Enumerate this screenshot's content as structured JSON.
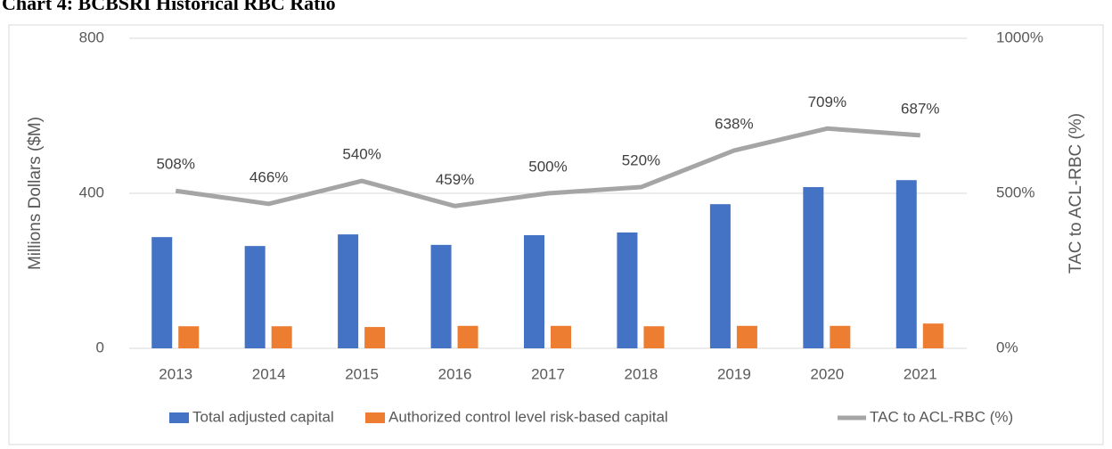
{
  "chart_data": {
    "type": "bar",
    "title": "Chart 4: BCBSRI Historical RBC Ratio",
    "categories": [
      "2013",
      "2014",
      "2015",
      "2016",
      "2017",
      "2018",
      "2019",
      "2020",
      "2021"
    ],
    "y_label": "Millions Dollars ($M)",
    "y2_label": "TAC to ACL-RBC (%)",
    "ylim": [
      0,
      800
    ],
    "yticks": [
      0,
      400,
      800
    ],
    "y2lim": [
      0,
      1000
    ],
    "y2ticks": [
      {
        "value": 0,
        "label": "0%"
      },
      {
        "value": 500,
        "label": "500%"
      },
      {
        "value": 1000,
        "label": "1000%"
      }
    ],
    "grid": true,
    "legend": "bottom",
    "series": [
      {
        "name": "Total adjusted capital",
        "type": "bar",
        "color": "#4472c4",
        "values": [
          287,
          264,
          294,
          267,
          292,
          299,
          372,
          416,
          434
        ]
      },
      {
        "name": "Authorized control level risk-based capital",
        "type": "bar",
        "color": "#ed7d31",
        "values": [
          57,
          57,
          55,
          58,
          58,
          57,
          58,
          58,
          64
        ]
      },
      {
        "name": "TAC to ACL-RBC (%)",
        "type": "line",
        "axis": "y2",
        "color": "#a5a5a5",
        "values": [
          508,
          466,
          540,
          459,
          500,
          520,
          638,
          709,
          687
        ],
        "value_labels": [
          "508%",
          "466%",
          "540%",
          "459%",
          "500%",
          "520%",
          "638%",
          "709%",
          "687%"
        ]
      }
    ]
  }
}
